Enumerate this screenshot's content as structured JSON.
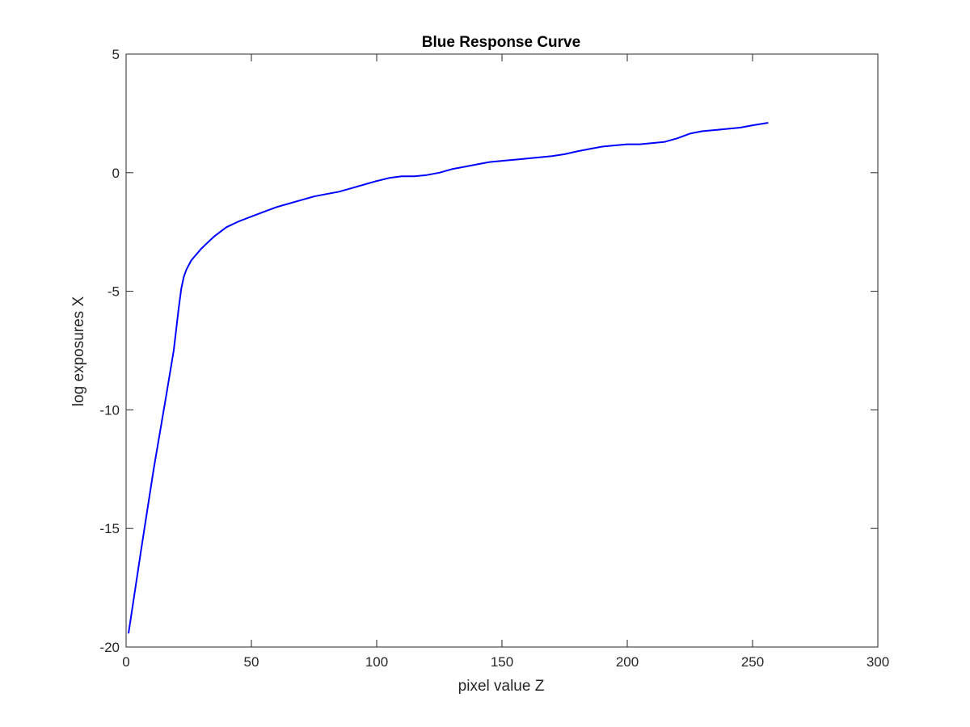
{
  "chart_data": {
    "type": "line",
    "title": "Blue Response Curve",
    "xlabel": "pixel value Z",
    "ylabel": "log exposures X",
    "xlim": [
      0,
      300
    ],
    "ylim": [
      -20,
      5
    ],
    "x_ticks": [
      0,
      50,
      100,
      150,
      200,
      250,
      300
    ],
    "y_ticks": [
      -20,
      -15,
      -10,
      -5,
      0,
      5
    ],
    "x_tick_labels": [
      "0",
      "50",
      "100",
      "150",
      "200",
      "250",
      "300"
    ],
    "y_tick_labels": [
      "-20",
      "-15",
      "-10",
      "-5",
      "0",
      "5"
    ],
    "grid": false,
    "box": true,
    "series": [
      {
        "color": "#0000ff",
        "x": [
          1,
          6,
          11,
          16,
          19,
          21,
          22,
          23,
          24,
          26,
          30,
          35,
          40,
          45,
          50,
          55,
          60,
          65,
          70,
          75,
          80,
          85,
          90,
          95,
          100,
          105,
          110,
          115,
          120,
          125,
          130,
          135,
          140,
          145,
          150,
          155,
          160,
          165,
          170,
          175,
          180,
          185,
          190,
          195,
          200,
          205,
          210,
          215,
          220,
          225,
          230,
          235,
          240,
          245,
          250,
          256
        ],
        "y": [
          -19.4,
          -15.9,
          -12.5,
          -9.4,
          -7.5,
          -5.7,
          -4.9,
          -4.4,
          -4.1,
          -3.7,
          -3.2,
          -2.7,
          -2.3,
          -2.05,
          -1.85,
          -1.65,
          -1.45,
          -1.3,
          -1.15,
          -1.0,
          -0.9,
          -0.8,
          -0.65,
          -0.5,
          -0.35,
          -0.22,
          -0.15,
          -0.15,
          -0.1,
          0.0,
          0.15,
          0.25,
          0.35,
          0.45,
          0.5,
          0.55,
          0.6,
          0.65,
          0.7,
          0.78,
          0.9,
          1.0,
          1.1,
          1.15,
          1.2,
          1.2,
          1.25,
          1.3,
          1.45,
          1.65,
          1.75,
          1.8,
          1.85,
          1.9,
          2.0,
          2.1
        ]
      }
    ]
  }
}
